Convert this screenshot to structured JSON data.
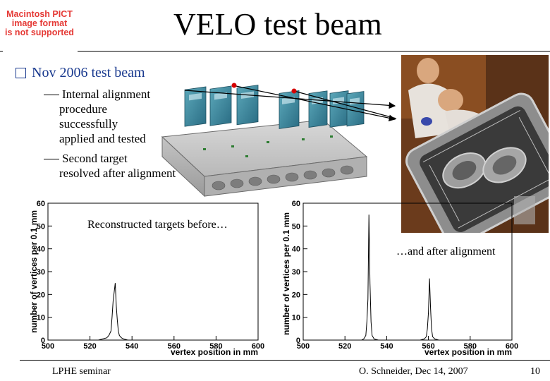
{
  "pict_notice": {
    "line1": "Macintosh PICT",
    "line2": "image format",
    "line3": "is not supported"
  },
  "title": "VELO test beam",
  "bullet": {
    "heading": "Nov 2006 test beam",
    "sub_items": [
      {
        "lines": [
          "Internal alignment",
          "procedure",
          "successfully",
          "applied and tested"
        ]
      },
      {
        "lines": [
          "Second target",
          "resolved after alignment"
        ]
      }
    ]
  },
  "captions": {
    "before": "Reconstructed targets before…",
    "after": "…and after alignment"
  },
  "colors": {
    "bullet": "#1a3a8f",
    "pict_text": "#e53935",
    "marker": "#d50000"
  },
  "chart_data": [
    {
      "type": "line",
      "ylabel": "number of vertices per 0.1 mm",
      "xlabel": "vertex position in mm",
      "xlim": [
        500,
        600
      ],
      "ylim": [
        0,
        60
      ],
      "xticks": [
        "500",
        "520",
        "540",
        "560",
        "580",
        "600"
      ],
      "yticks": [
        "0",
        "10",
        "20",
        "30",
        "40",
        "50",
        "60"
      ],
      "series": [
        {
          "x": [
            500,
            520,
            524,
            526,
            528,
            529,
            530,
            530.5,
            531,
            531.5,
            532,
            532.5,
            533,
            533.5,
            534,
            535,
            536,
            538,
            540,
            560,
            600
          ],
          "y": [
            0,
            0,
            0,
            0.5,
            1,
            2,
            4,
            10,
            17,
            21,
            25,
            15,
            9,
            4,
            2,
            1,
            0.5,
            0,
            0,
            0,
            0
          ]
        }
      ]
    },
    {
      "type": "line",
      "ylabel": "number of vertices per 0.1 mm",
      "xlabel": "vertex position in mm",
      "xlim": [
        500,
        600
      ],
      "ylim": [
        0,
        60
      ],
      "xticks": [
        "500",
        "520",
        "540",
        "560",
        "580",
        "600"
      ],
      "yticks": [
        "0",
        "10",
        "20",
        "30",
        "40",
        "50",
        "60"
      ],
      "series": [
        {
          "x": [
            500,
            528,
            529,
            530,
            530.5,
            531,
            531.5,
            532,
            532.5,
            533,
            534,
            536,
            556,
            558,
            559,
            559.5,
            560,
            560.5,
            561,
            561.5,
            562,
            563,
            565,
            600
          ],
          "y": [
            0,
            0,
            0.5,
            2,
            8,
            18,
            55,
            25,
            8,
            2,
            0.5,
            0,
            0,
            0.5,
            1.5,
            5,
            12,
            27,
            14,
            5,
            1.5,
            0.5,
            0,
            0
          ]
        }
      ]
    }
  ],
  "footer": {
    "left": "LPHE seminar",
    "center": "O. Schneider, Dec 14, 2007",
    "page": "10"
  }
}
